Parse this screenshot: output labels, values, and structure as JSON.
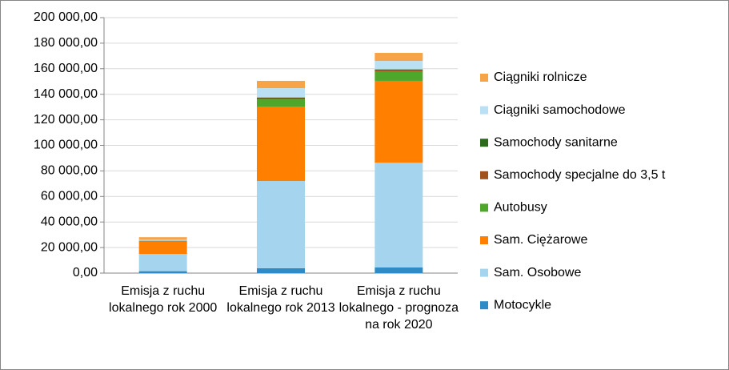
{
  "chart_data": {
    "type": "bar",
    "stacked": true,
    "categories": [
      "Emisja z ruchu lokalnego rok 2000",
      "Emisja z ruchu lokalnego rok 2013",
      "Emisja z ruchu lokalnego - prognoza na rok 2020"
    ],
    "series": [
      {
        "name": "Motocykle",
        "color": "#2e8bc6",
        "values": [
          1500,
          3800,
          4400
        ]
      },
      {
        "name": "Sam. Osobowe",
        "color": "#a5d5ee",
        "values": [
          13500,
          68300,
          82100
        ]
      },
      {
        "name": "Sam. Ciężarowe",
        "color": "#ff7f00",
        "values": [
          9500,
          58300,
          64000
        ]
      },
      {
        "name": "Autobusy",
        "color": "#4ea72a",
        "values": [
          500,
          5600,
          7500
        ]
      },
      {
        "name": "Samochody specjalne do 3,5 t",
        "color": "#a0521a",
        "values": [
          200,
          1000,
          1000
        ]
      },
      {
        "name": "Samochody sanitarne",
        "color": "#2d6a1c",
        "values": [
          100,
          500,
          500
        ]
      },
      {
        "name": "Ciągniki samochodowe",
        "color": "#bce0f3",
        "values": [
          800,
          7300,
          6600
        ]
      },
      {
        "name": "Ciągniki rolnicze",
        "color": "#f7a448",
        "values": [
          2000,
          5700,
          6300
        ]
      }
    ],
    "ylim": [
      0,
      200000
    ],
    "yticks": [
      {
        "value": 0,
        "label": "0,00"
      },
      {
        "value": 20000,
        "label": "20 000,00"
      },
      {
        "value": 40000,
        "label": "40 000,00"
      },
      {
        "value": 60000,
        "label": "60 000,00"
      },
      {
        "value": 80000,
        "label": "80 000,00"
      },
      {
        "value": 100000,
        "label": "100 000,00"
      },
      {
        "value": 120000,
        "label": "120 000,00"
      },
      {
        "value": 140000,
        "label": "140 000,00"
      },
      {
        "value": 160000,
        "label": "160 000,00"
      },
      {
        "value": 180000,
        "label": "180 000,00"
      },
      {
        "value": 200000,
        "label": "200 000,00"
      }
    ],
    "grid": true,
    "legend": "right"
  }
}
